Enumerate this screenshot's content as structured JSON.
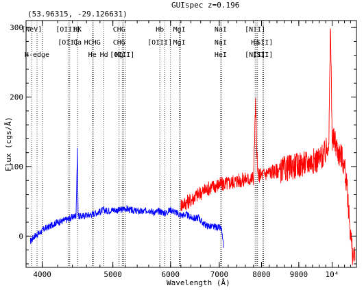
{
  "chart_data": {
    "type": "line",
    "title": "GUIspec z=0.196",
    "subtitle": "(53.96315, -29.126631)",
    "xlabel": "Wavelength (Å)",
    "ylabel": "Flux (cgs/Å)",
    "x_scale": "log",
    "xlim": [
      3800,
      10800
    ],
    "ylim": [
      -45,
      310
    ],
    "x_ticks": [
      {
        "value": 4000,
        "label": "4000"
      },
      {
        "value": 5000,
        "label": "5000"
      },
      {
        "value": 6000,
        "label": "6000"
      },
      {
        "value": 7000,
        "label": "7000"
      },
      {
        "value": 8000,
        "label": "8000"
      },
      {
        "value": 9000,
        "label": "9000"
      },
      {
        "value": 10000,
        "label": "10⁴"
      }
    ],
    "y_ticks": [
      0,
      100,
      200,
      300
    ],
    "grid": false,
    "series": [
      {
        "color": "#0000ff",
        "x": [
          3850,
          3900,
          3950,
          4000,
          4050,
          4100,
          4150,
          4200,
          4250,
          4300,
          4350,
          4400,
          4450,
          4470,
          4480,
          4500,
          4600,
          4700,
          4800,
          4861,
          4900,
          5000,
          5100,
          5200,
          5300,
          5400,
          5500,
          5600,
          5700,
          5800,
          5900,
          6000,
          6100,
          6200,
          6300,
          6400,
          6500,
          6563,
          6600,
          6700,
          6800,
          6900,
          7000,
          7050,
          7080,
          7100
        ],
        "y": [
          -8,
          0,
          3,
          8,
          12,
          14,
          18,
          20,
          21,
          23,
          25,
          27,
          30,
          122,
          30,
          28,
          30,
          32,
          35,
          38,
          36,
          38,
          37,
          40,
          37,
          36,
          35,
          38,
          34,
          36,
          33,
          38,
          34,
          30,
          31,
          27,
          25,
          28,
          22,
          16,
          14,
          13,
          12,
          10,
          -10,
          -15
        ]
      },
      {
        "color": "#ff0000",
        "x": [
          6200,
          6300,
          6400,
          6500,
          6600,
          6700,
          6800,
          6900,
          7000,
          7100,
          7200,
          7300,
          7400,
          7500,
          7600,
          7700,
          7800,
          7850,
          7900,
          8000,
          8100,
          8200,
          8400,
          8600,
          8800,
          9000,
          9200,
          9400,
          9600,
          9800,
          9900,
          9950,
          10000,
          10100,
          10200,
          10300,
          10400,
          10500,
          10550,
          10600,
          10650,
          10700,
          10750
        ],
        "y": [
          45,
          48,
          52,
          58,
          62,
          66,
          70,
          72,
          74,
          75,
          76,
          78,
          80,
          80,
          82,
          82,
          84,
          190,
          88,
          88,
          90,
          92,
          94,
          96,
          100,
          102,
          105,
          108,
          110,
          120,
          140,
          305,
          140,
          135,
          120,
          115,
          100,
          60,
          30,
          5,
          -20,
          -30,
          -35
        ]
      }
    ],
    "lines": [
      {
        "x": 3727,
        "top": "[OII]",
        "mid": "",
        "bot": ""
      },
      {
        "x": 3869,
        "top": "[NeV]",
        "mid": "",
        "bot": ""
      },
      {
        "x": 3934,
        "top": "",
        "mid": "",
        "bot": "H-edge"
      },
      {
        "x": 4000,
        "top": "",
        "mid": "",
        "bot": ""
      },
      {
        "x": 4340,
        "top": "[OIII]",
        "mid": "[OII]",
        "bot": ""
      },
      {
        "x": 4363,
        "top": "",
        "mid": "",
        "bot": ""
      },
      {
        "x": 4471,
        "top": "HK",
        "mid": "Ca",
        "bot": ""
      },
      {
        "x": 4686,
        "top": "",
        "mid": "HCHG",
        "bot": "He"
      },
      {
        "x": 4700,
        "top": "",
        "mid": "",
        "bot": ""
      },
      {
        "x": 4861,
        "top": "",
        "mid": "",
        "bot": "Hd"
      },
      {
        "x": 5100,
        "top": "CHG",
        "mid": "CHG",
        "bot": "Hg"
      },
      {
        "x": 5150,
        "top": "",
        "mid": "",
        "bot": "[OIII]"
      },
      {
        "x": 5175,
        "top": "",
        "mid": "",
        "bot": ""
      },
      {
        "x": 5200,
        "top": "",
        "mid": "",
        "bot": ""
      },
      {
        "x": 5800,
        "top": "Hb",
        "mid": "[OIII]",
        "bot": ""
      },
      {
        "x": 5890,
        "top": "",
        "mid": "",
        "bot": ""
      },
      {
        "x": 6000,
        "top": "",
        "mid": "",
        "bot": ""
      },
      {
        "x": 6170,
        "top": "MgI",
        "mid": "MgI",
        "bot": ""
      },
      {
        "x": 6190,
        "top": "",
        "mid": "",
        "bot": ""
      },
      {
        "x": 7030,
        "top": "NaI",
        "mid": "NaI",
        "bot": "HeI"
      },
      {
        "x": 7050,
        "top": "",
        "mid": "",
        "bot": ""
      },
      {
        "x": 7840,
        "top": "[NII]",
        "mid": "Ha",
        "bot": "[NII]"
      },
      {
        "x": 7870,
        "top": "",
        "mid": "",
        "bot": ""
      },
      {
        "x": 7900,
        "top": "",
        "mid": "",
        "bot": ""
      },
      {
        "x": 8030,
        "top": "",
        "mid": "[SII]",
        "bot": "[SII]"
      },
      {
        "x": 8050,
        "top": "",
        "mid": "",
        "bot": ""
      }
    ]
  }
}
